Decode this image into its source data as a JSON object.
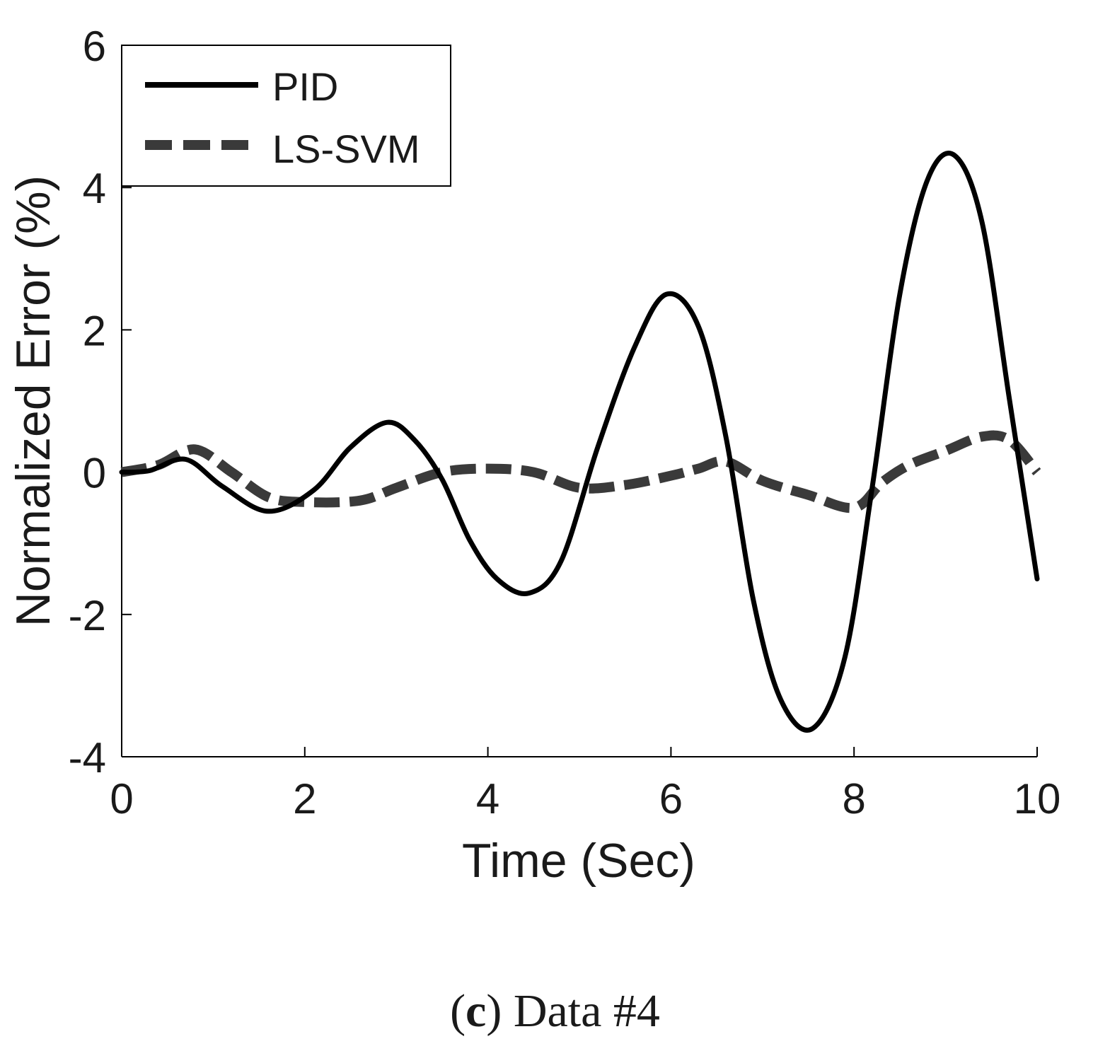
{
  "chart_data": {
    "type": "line",
    "title": "",
    "xlabel": "Time (Sec)",
    "ylabel": "Normalized Error (%)",
    "xlim": [
      0,
      10
    ],
    "ylim": [
      -4,
      6
    ],
    "xticks": [
      "0",
      "2",
      "4",
      "6",
      "8",
      "10"
    ],
    "yticks": [
      "-4",
      "-2",
      "0",
      "2",
      "4",
      "6"
    ],
    "grid": false,
    "legend_position": "top-left",
    "series": [
      {
        "name": "PID",
        "style": "solid",
        "color": "#000000",
        "x": [
          0,
          0.3,
          0.7,
          1.1,
          1.6,
          2.1,
          2.5,
          2.9,
          3.2,
          3.5,
          3.8,
          4.1,
          4.45,
          4.8,
          5.2,
          5.6,
          5.95,
          6.3,
          6.6,
          6.9,
          7.2,
          7.55,
          7.9,
          8.2,
          8.5,
          8.8,
          9.1,
          9.4,
          9.7,
          10.0
        ],
        "y": [
          0.0,
          0.02,
          0.18,
          -0.2,
          -0.55,
          -0.25,
          0.35,
          0.7,
          0.45,
          -0.1,
          -0.95,
          -1.5,
          -1.7,
          -1.25,
          0.35,
          1.75,
          2.5,
          2.05,
          0.5,
          -1.8,
          -3.2,
          -3.6,
          -2.6,
          -0.2,
          2.5,
          4.1,
          4.45,
          3.5,
          1.0,
          -1.5
        ]
      },
      {
        "name": "LS-SVM",
        "style": "dashed",
        "color": "#3a3a3a",
        "x": [
          0,
          0.4,
          0.8,
          1.2,
          1.6,
          2.0,
          2.6,
          3.0,
          3.5,
          4.0,
          4.5,
          5.0,
          5.5,
          6.0,
          6.3,
          6.6,
          7.0,
          7.5,
          8.0,
          8.3,
          8.6,
          9.0,
          9.4,
          9.7,
          10.0
        ],
        "y": [
          0.0,
          0.1,
          0.32,
          0.0,
          -0.35,
          -0.42,
          -0.4,
          -0.22,
          0.0,
          0.05,
          0.0,
          -0.22,
          -0.18,
          -0.05,
          0.05,
          0.15,
          -0.12,
          -0.32,
          -0.5,
          -0.15,
          0.1,
          0.3,
          0.5,
          0.45,
          0.0
        ]
      }
    ]
  },
  "caption": {
    "letter": "c",
    "text": " Data #4"
  }
}
